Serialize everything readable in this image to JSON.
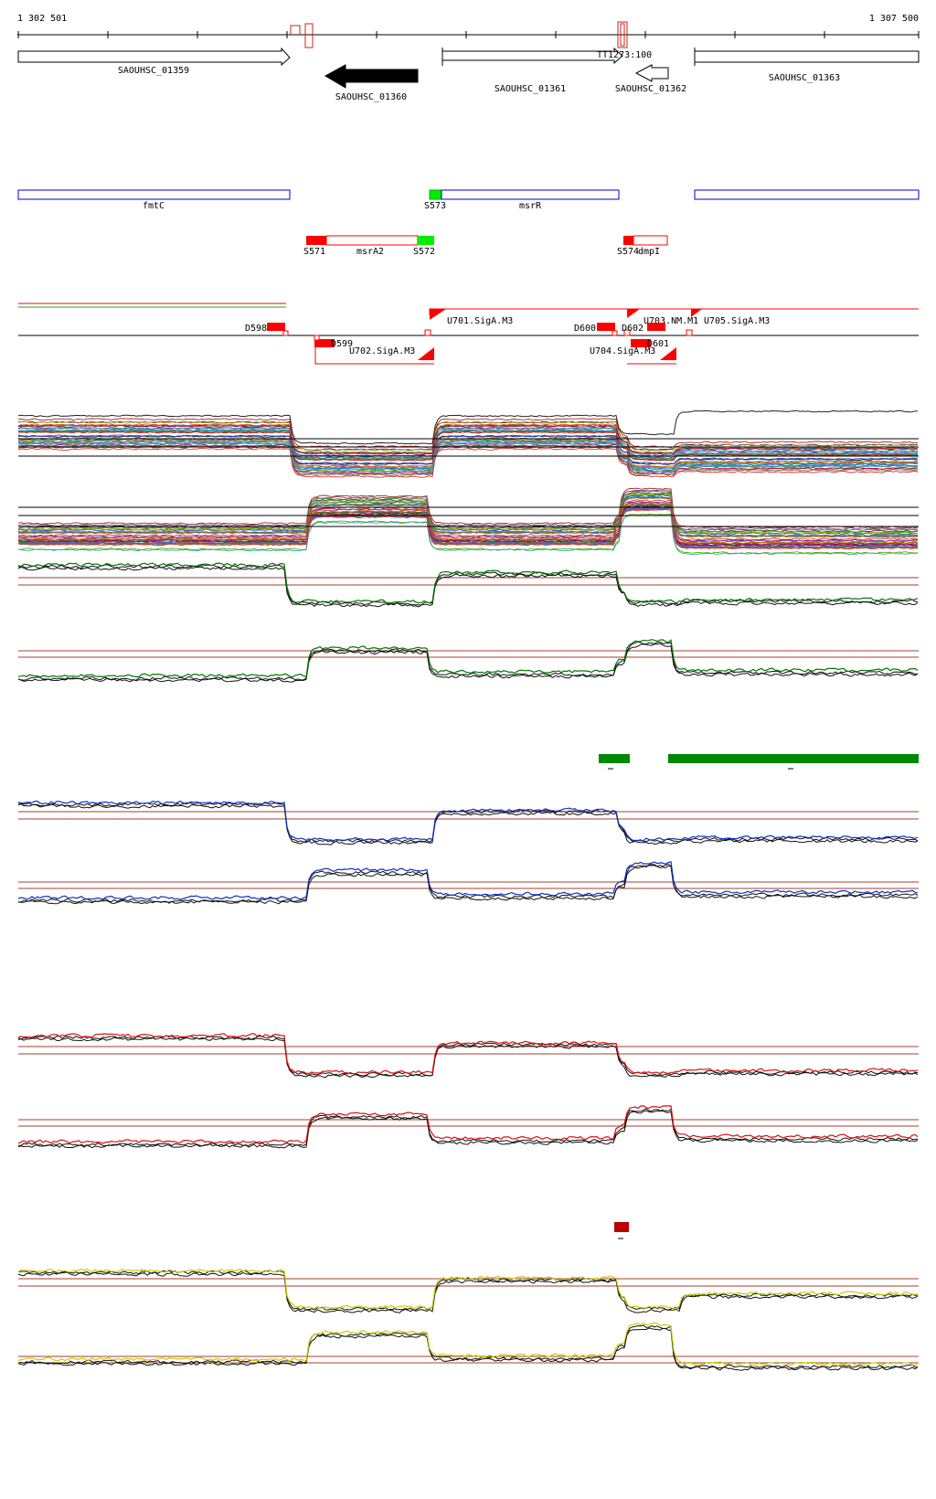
{
  "ruler": {
    "start_label": "1 302 501",
    "end_label": "1 307 500"
  },
  "genes": [
    {
      "label": "SAOUHSC_01359",
      "strand": "+",
      "filled": false
    },
    {
      "label": "SAOUHSC_01360",
      "strand": "-",
      "filled": true
    },
    {
      "label": "SAOUHSC_01361",
      "strand": "+",
      "filled": false
    },
    {
      "label": "SAOUHSC_01362",
      "strand": "-",
      "filled": false
    },
    {
      "label": "SAOUHSC_01363",
      "strand": "+",
      "filled": false
    },
    {
      "label": "TT1273:100"
    }
  ],
  "transcripts": {
    "blue": [
      "fmtC",
      "msrR",
      ""
    ],
    "blue_start_labels": [
      "S573"
    ],
    "red": [
      {
        "start": "S571",
        "name": "msrA2",
        "end": "S572"
      },
      {
        "start": "S574",
        "name": "dmpI"
      }
    ]
  },
  "features": {
    "down": [
      "D598",
      "D599",
      "D600",
      "D602",
      "D601"
    ],
    "up": [
      "U701.SigA.M3",
      "U702.SigA.M3",
      "U703.NM.M1",
      "U705.SigA.M3",
      "U704.SigA.M3"
    ]
  },
  "colors": {
    "black": "#000000",
    "red_mark": "#ff0000",
    "green_mark": "#00ee00",
    "blue_box": "#0000cc",
    "green_track": "#007700",
    "blue_track": "#1030c0",
    "red_track": "#dd1111",
    "yellow_track": "#cccc00",
    "threshold": "#a04030",
    "dark_red_block": "#bb0000"
  },
  "highlight_blocks": [
    "green-segment-1",
    "green-segment-2",
    "dark-red-segment"
  ]
}
